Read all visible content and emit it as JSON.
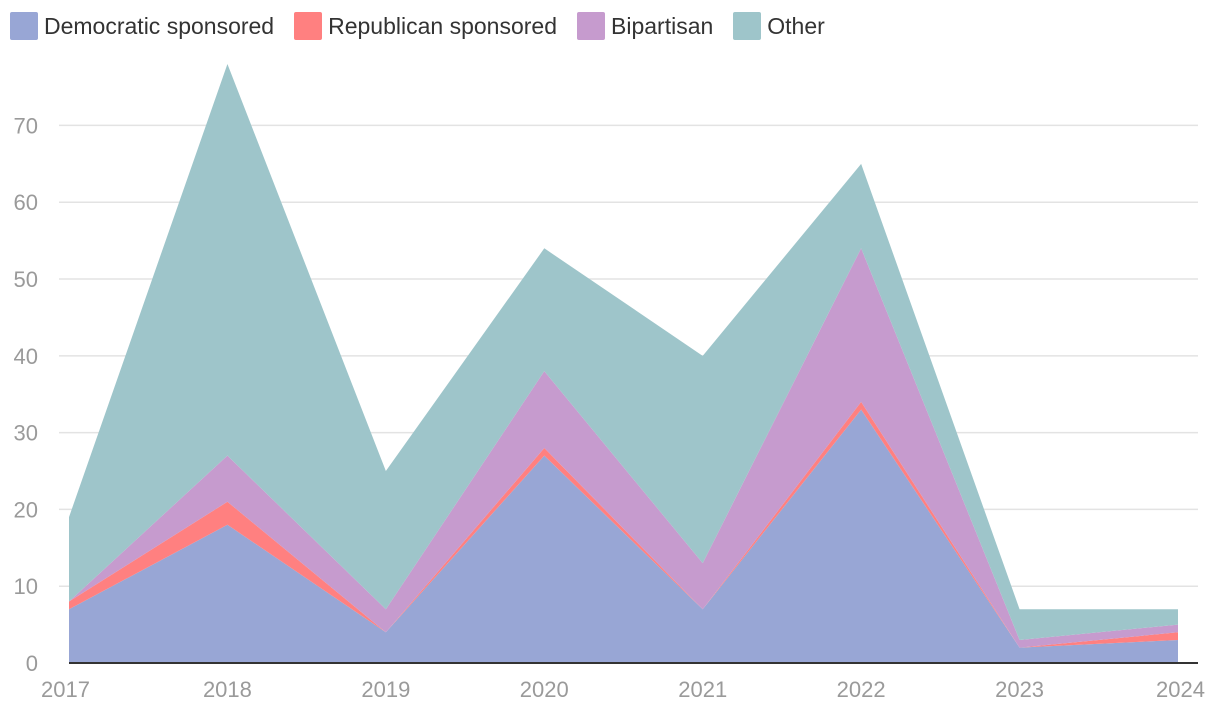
{
  "chart_data": {
    "type": "area",
    "stacked": true,
    "x": [
      "2017",
      "2018",
      "2019",
      "2020",
      "2021",
      "2022",
      "2023",
      "2024"
    ],
    "series": [
      {
        "name": "Democratic sponsored",
        "color": "#98a6d5",
        "values": [
          7,
          18,
          4,
          27,
          7,
          33,
          2,
          3
        ]
      },
      {
        "name": "Republican sponsored",
        "color": "#ff8080",
        "values": [
          1,
          3,
          0,
          1,
          0,
          1,
          0,
          1
        ]
      },
      {
        "name": "Bipartisan",
        "color": "#c69bce",
        "values": [
          0,
          6,
          3,
          10,
          6,
          20,
          1,
          1
        ]
      },
      {
        "name": "Other",
        "color": "#9ec5ca",
        "values": [
          11,
          51,
          18,
          16,
          27,
          11,
          4,
          2
        ]
      }
    ],
    "ylim": [
      0,
      78
    ],
    "yticks": [
      0,
      10,
      20,
      30,
      40,
      50,
      60,
      70
    ],
    "grid": true,
    "legend_position": "top-left",
    "title": "",
    "xlabel": "",
    "ylabel": ""
  }
}
